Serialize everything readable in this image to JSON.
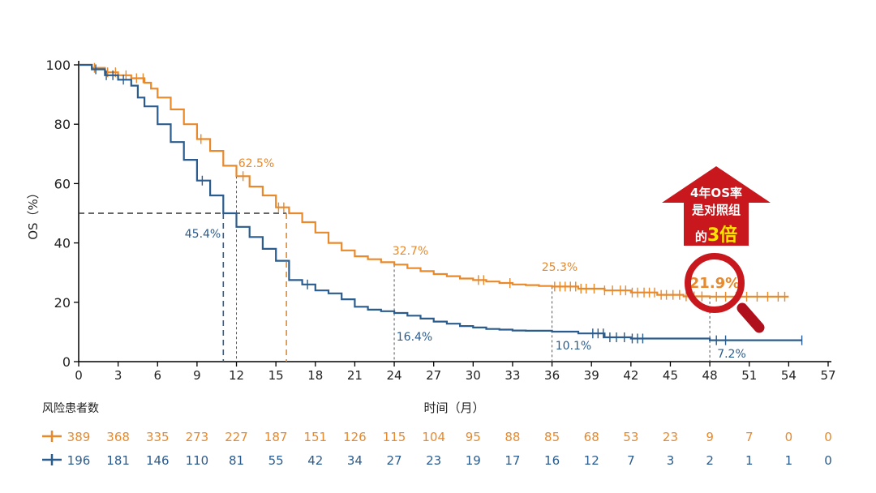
{
  "chart_data": {
    "type": "line",
    "ylabel": "OS（%）",
    "xlabel": "时间（月）",
    "xlim": [
      0,
      57
    ],
    "ylim": [
      0,
      100
    ],
    "xticks": [
      0,
      3,
      6,
      9,
      12,
      15,
      18,
      21,
      24,
      27,
      30,
      33,
      36,
      39,
      42,
      45,
      48,
      51,
      54,
      57
    ],
    "yticks": [
      0,
      20,
      40,
      60,
      80,
      100
    ],
    "grid": false,
    "colors": {
      "orange": "#E8892B",
      "blue": "#2B5C8E",
      "red": "#C8171D",
      "highlight_text": "#FFE400"
    },
    "series": [
      {
        "color": "#E8892B",
        "km": [
          [
            0,
            100
          ],
          [
            1,
            99
          ],
          [
            2,
            97.5
          ],
          [
            3,
            96.5
          ],
          [
            4,
            95.5
          ],
          [
            5,
            94
          ],
          [
            5.5,
            92
          ],
          [
            6,
            89
          ],
          [
            7,
            85
          ],
          [
            8,
            80
          ],
          [
            9,
            75
          ],
          [
            10,
            71
          ],
          [
            11,
            66
          ],
          [
            12,
            62.5
          ],
          [
            13,
            59
          ],
          [
            14,
            56
          ],
          [
            15,
            52
          ],
          [
            16,
            50
          ],
          [
            17,
            47
          ],
          [
            18,
            43.5
          ],
          [
            19,
            40
          ],
          [
            20,
            37.5
          ],
          [
            21,
            35.5
          ],
          [
            22,
            34.5
          ],
          [
            23,
            33.5
          ],
          [
            24,
            32.7
          ],
          [
            25,
            31.5
          ],
          [
            26,
            30.5
          ],
          [
            27,
            29.5
          ],
          [
            28,
            28.8
          ],
          [
            29,
            28
          ],
          [
            30,
            27.5
          ],
          [
            31,
            27
          ],
          [
            32,
            26.5
          ],
          [
            33,
            26
          ],
          [
            34,
            25.8
          ],
          [
            35,
            25.5
          ],
          [
            36,
            25.3
          ],
          [
            38,
            24.6
          ],
          [
            40,
            24
          ],
          [
            42,
            23.3
          ],
          [
            44,
            22.5
          ],
          [
            46,
            22
          ],
          [
            48,
            21.9
          ],
          [
            54,
            21.9
          ]
        ],
        "censor_x": [
          1.2,
          2.2,
          2.8,
          3.6,
          4.4,
          4.9,
          9.3,
          12.5,
          15.2,
          15.6,
          30.4,
          30.8,
          32.8,
          36.2,
          36.6,
          37,
          37.4,
          37.8,
          38.2,
          38.6,
          39.2,
          40,
          40.6,
          41.2,
          41.6,
          42.1,
          42.5,
          43,
          43.4,
          43.8,
          44.3,
          44.7,
          45.2,
          45.7,
          46.2,
          46.8,
          47.4,
          48.5,
          49.2,
          50,
          50.8,
          51.6,
          52.4,
          53.2,
          53.7
        ],
        "at_risk": [
          389,
          368,
          335,
          273,
          227,
          187,
          151,
          126,
          115,
          104,
          95,
          88,
          85,
          68,
          53,
          23,
          9,
          7,
          0,
          0
        ]
      },
      {
        "color": "#2B5C8E",
        "km": [
          [
            0,
            100
          ],
          [
            1,
            98.5
          ],
          [
            2,
            96.5
          ],
          [
            3,
            95
          ],
          [
            4,
            93
          ],
          [
            4.5,
            89
          ],
          [
            5,
            86
          ],
          [
            6,
            80
          ],
          [
            7,
            74
          ],
          [
            8,
            68
          ],
          [
            9,
            61
          ],
          [
            10,
            56
          ],
          [
            11,
            50
          ],
          [
            12,
            45.4
          ],
          [
            13,
            42
          ],
          [
            14,
            38
          ],
          [
            15,
            34
          ],
          [
            16,
            27.5
          ],
          [
            17,
            26
          ],
          [
            18,
            24
          ],
          [
            19,
            23
          ],
          [
            20,
            21
          ],
          [
            21,
            18.5
          ],
          [
            22,
            17.5
          ],
          [
            23,
            17
          ],
          [
            24,
            16.4
          ],
          [
            25,
            15.5
          ],
          [
            26,
            14.5
          ],
          [
            27,
            13.5
          ],
          [
            28,
            12.8
          ],
          [
            29,
            12
          ],
          [
            30,
            11.5
          ],
          [
            31,
            11
          ],
          [
            32,
            10.8
          ],
          [
            33,
            10.5
          ],
          [
            34,
            10.4
          ],
          [
            36,
            10.1
          ],
          [
            38,
            9.5
          ],
          [
            40,
            8.2
          ],
          [
            42,
            7.8
          ],
          [
            48,
            7.2
          ],
          [
            55,
            7.2
          ]
        ],
        "censor_x": [
          1.3,
          2.1,
          2.6,
          3.4,
          9.4,
          17.4,
          39.1,
          39.5,
          39.9,
          40.4,
          40.9,
          41.5,
          42.1,
          42.5,
          42.9,
          48.5,
          49.2,
          55
        ],
        "at_risk": [
          196,
          181,
          146,
          110,
          81,
          55,
          42,
          34,
          27,
          23,
          19,
          17,
          16,
          12,
          7,
          3,
          2,
          1,
          1,
          0
        ]
      }
    ],
    "reference_lines": {
      "median_y": 50,
      "median_x": [
        11,
        15.8
      ],
      "landmark_x": [
        12,
        24,
        36,
        48
      ]
    },
    "annotations": [
      {
        "text": "62.5%",
        "color": "#E8892B"
      },
      {
        "text": "45.4%",
        "color": "#2B5C8E"
      },
      {
        "text": "32.7%",
        "color": "#E8892B"
      },
      {
        "text": "16.4%",
        "color": "#2B5C8E"
      },
      {
        "text": "25.3%",
        "color": "#E8892B"
      },
      {
        "text": "10.1%",
        "color": "#2B5C8E"
      },
      {
        "text": "21.9%",
        "color": "#E8892B"
      },
      {
        "text": "7.2%",
        "color": "#2B5C8E"
      }
    ],
    "risk_table_title": "风险患者数",
    "callout": {
      "line1": "4年OS率",
      "line2": "是对照组",
      "line3a": "的",
      "line3b": "3倍",
      "icon": "magnifier-icon"
    }
  }
}
